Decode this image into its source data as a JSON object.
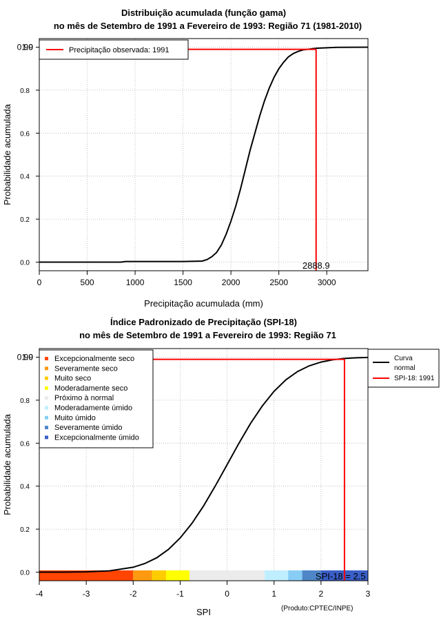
{
  "colors": {
    "curve": "#000000",
    "observed": "#ff0000",
    "grid": "#b0b0b0"
  },
  "credit": "(Produto:CPTEC/INPE)",
  "chart_data": [
    {
      "type": "line",
      "title_line1": "Distribuição acumulada (função gama)",
      "title_line2": "no mês de Setembro de 1991 a Fevereiro de 1993: Região 71 (1981-2010)",
      "xlabel": "Precipitação acumulada (mm)",
      "ylabel": "Probabilidade acumulada",
      "xlim": [
        0,
        3430
      ],
      "ylim": [
        -0.04,
        1.04
      ],
      "x_ticks": [
        0,
        500,
        1000,
        1500,
        2000,
        2500,
        3000
      ],
      "y_ticks": [
        "0.0",
        "0.2",
        "0.4",
        "0.6",
        "0.8"
      ],
      "y_top_labels": [
        "1.0",
        "0.99"
      ],
      "series": [
        {
          "name": "Distribuição gama",
          "x": [
            0,
            850,
            900,
            1500,
            1700,
            1750,
            1800,
            1850,
            1900,
            1950,
            2000,
            2050,
            2100,
            2150,
            2200,
            2250,
            2300,
            2350,
            2400,
            2450,
            2500,
            2550,
            2600,
            2650,
            2700,
            2750,
            2800,
            2850,
            2900,
            3000,
            3100,
            3430
          ],
          "y": [
            0,
            0,
            0.003,
            0.003,
            0.005,
            0.012,
            0.025,
            0.045,
            0.08,
            0.13,
            0.19,
            0.26,
            0.34,
            0.43,
            0.52,
            0.6,
            0.68,
            0.75,
            0.81,
            0.86,
            0.9,
            0.93,
            0.955,
            0.97,
            0.98,
            0.987,
            0.99,
            0.993,
            0.995,
            0.997,
            0.999,
            1.0
          ]
        }
      ],
      "observed_value": 2888.9,
      "observed_prob": 0.99,
      "observed_label": "2888.9",
      "legend": [
        "Precipitação observada: 1991"
      ]
    },
    {
      "type": "line",
      "title_line1": "Índice Padronizado de Precipitação (SPI-18)",
      "title_line2": "no mês de Setembro de 1991 a Fevereiro de 1993: Região 71",
      "xlabel": "SPI",
      "ylabel": "Probabilidade acumulada",
      "xlim": [
        -4,
        3
      ],
      "ylim": [
        -0.04,
        1.04
      ],
      "x_ticks": [
        -4,
        -3,
        -2,
        -1,
        0,
        1,
        2,
        3
      ],
      "y_ticks": [
        "0.0",
        "0.2",
        "0.4",
        "0.6",
        "0.8"
      ],
      "y_top_labels": [
        "1.0",
        "0.99"
      ],
      "series": [
        {
          "name": "Curva normal",
          "x": [
            -4.0,
            -3.5,
            -3.0,
            -2.5,
            -2.0,
            -1.75,
            -1.5,
            -1.25,
            -1.0,
            -0.75,
            -0.5,
            -0.25,
            0.0,
            0.25,
            0.5,
            0.75,
            1.0,
            1.25,
            1.5,
            1.75,
            2.0,
            2.25,
            2.5,
            2.75,
            3.0
          ],
          "y": [
            3e-05,
            0.0002,
            0.0013,
            0.0062,
            0.0228,
            0.0401,
            0.0668,
            0.1056,
            0.1587,
            0.2266,
            0.3085,
            0.4013,
            0.5,
            0.5987,
            0.6915,
            0.7734,
            0.8413,
            0.8944,
            0.9332,
            0.9599,
            0.9772,
            0.9878,
            0.9938,
            0.997,
            0.9987
          ]
        }
      ],
      "observed_value": 2.5,
      "observed_prob": 0.99,
      "observed_label": "SPI-18 = 2.5",
      "legend": [
        "Curva normal",
        "SPI-18: 1991"
      ],
      "categories": [
        {
          "name": "Excepcionalmente seco",
          "from": -4.0,
          "to": -2.0,
          "color": "#ff4500"
        },
        {
          "name": "Severamente seco",
          "from": -2.0,
          "to": -1.6,
          "color": "#ff9a10"
        },
        {
          "name": "Muito seco",
          "from": -1.6,
          "to": -1.3,
          "color": "#ffcc00"
        },
        {
          "name": "Moderadamente seco",
          "from": -1.3,
          "to": -0.8,
          "color": "#ffff00"
        },
        {
          "name": "Próximo à normal",
          "from": -0.8,
          "to": 0.8,
          "color": "#ebebeb"
        },
        {
          "name": "Moderadamente úmido",
          "from": 0.8,
          "to": 1.3,
          "color": "#bfeeff"
        },
        {
          "name": "Muito úmido",
          "from": 1.3,
          "to": 1.6,
          "color": "#87cdf5"
        },
        {
          "name": "Severamente úmido",
          "from": 1.6,
          "to": 2.0,
          "color": "#4e86c8"
        },
        {
          "name": "Excepcionalmente úmido",
          "from": 2.0,
          "to": 3.0,
          "color": "#3a5fc8"
        }
      ]
    }
  ]
}
